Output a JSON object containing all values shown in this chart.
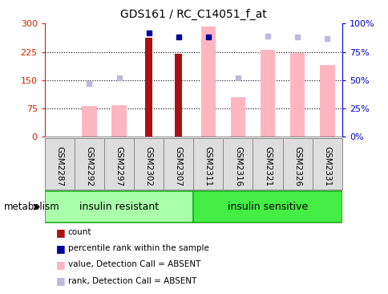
{
  "title": "GDS161 / RC_C14051_f_at",
  "samples": [
    "GSM2287",
    "GSM2292",
    "GSM2297",
    "GSM2302",
    "GSM2307",
    "GSM2311",
    "GSM2316",
    "GSM2321",
    "GSM2326",
    "GSM2331"
  ],
  "red_bars": [
    null,
    null,
    null,
    263,
    220,
    null,
    null,
    null,
    null,
    null
  ],
  "pink_bars": [
    null,
    82,
    84,
    null,
    null,
    292,
    105,
    230,
    222,
    190
  ],
  "blue_squares_pct": [
    null,
    null,
    null,
    92,
    88,
    88,
    null,
    null,
    null,
    null
  ],
  "lavender_squares_pct": [
    null,
    47,
    52,
    null,
    null,
    null,
    52,
    89,
    88,
    87
  ],
  "ylim_left": [
    0,
    300
  ],
  "ylim_right": [
    0,
    100
  ],
  "yticks_left": [
    0,
    75,
    150,
    225,
    300
  ],
  "yticks_right": [
    0,
    25,
    50,
    75,
    100
  ],
  "ytick_labels_left": [
    "0",
    "75",
    "150",
    "225",
    "300"
  ],
  "ytick_labels_right": [
    "0%",
    "25%",
    "50%",
    "75%",
    "100%"
  ],
  "group1_label": "insulin resistant",
  "group2_label": "insulin sensitive",
  "group1_indices": [
    0,
    1,
    2,
    3,
    4
  ],
  "group2_indices": [
    5,
    6,
    7,
    8,
    9
  ],
  "metabolism_label": "metabolism",
  "legend_labels": [
    "count",
    "percentile rank within the sample",
    "value, Detection Call = ABSENT",
    "rank, Detection Call = ABSENT"
  ],
  "pink_color": "#FFB6C1",
  "lavender_color": "#BBBBDD",
  "red_color": "#AA1111",
  "blue_color": "#000099",
  "ax_left_color": "#CC2200",
  "ax_right_color": "#0000CC",
  "group1_color": "#AAFFAA",
  "group2_color": "#44EE44",
  "group_border_color": "#22AA22",
  "label_bg_color": "#DDDDDD",
  "label_border_color": "#888888",
  "pink_bar_width": 0.5,
  "red_bar_width": 0.25
}
